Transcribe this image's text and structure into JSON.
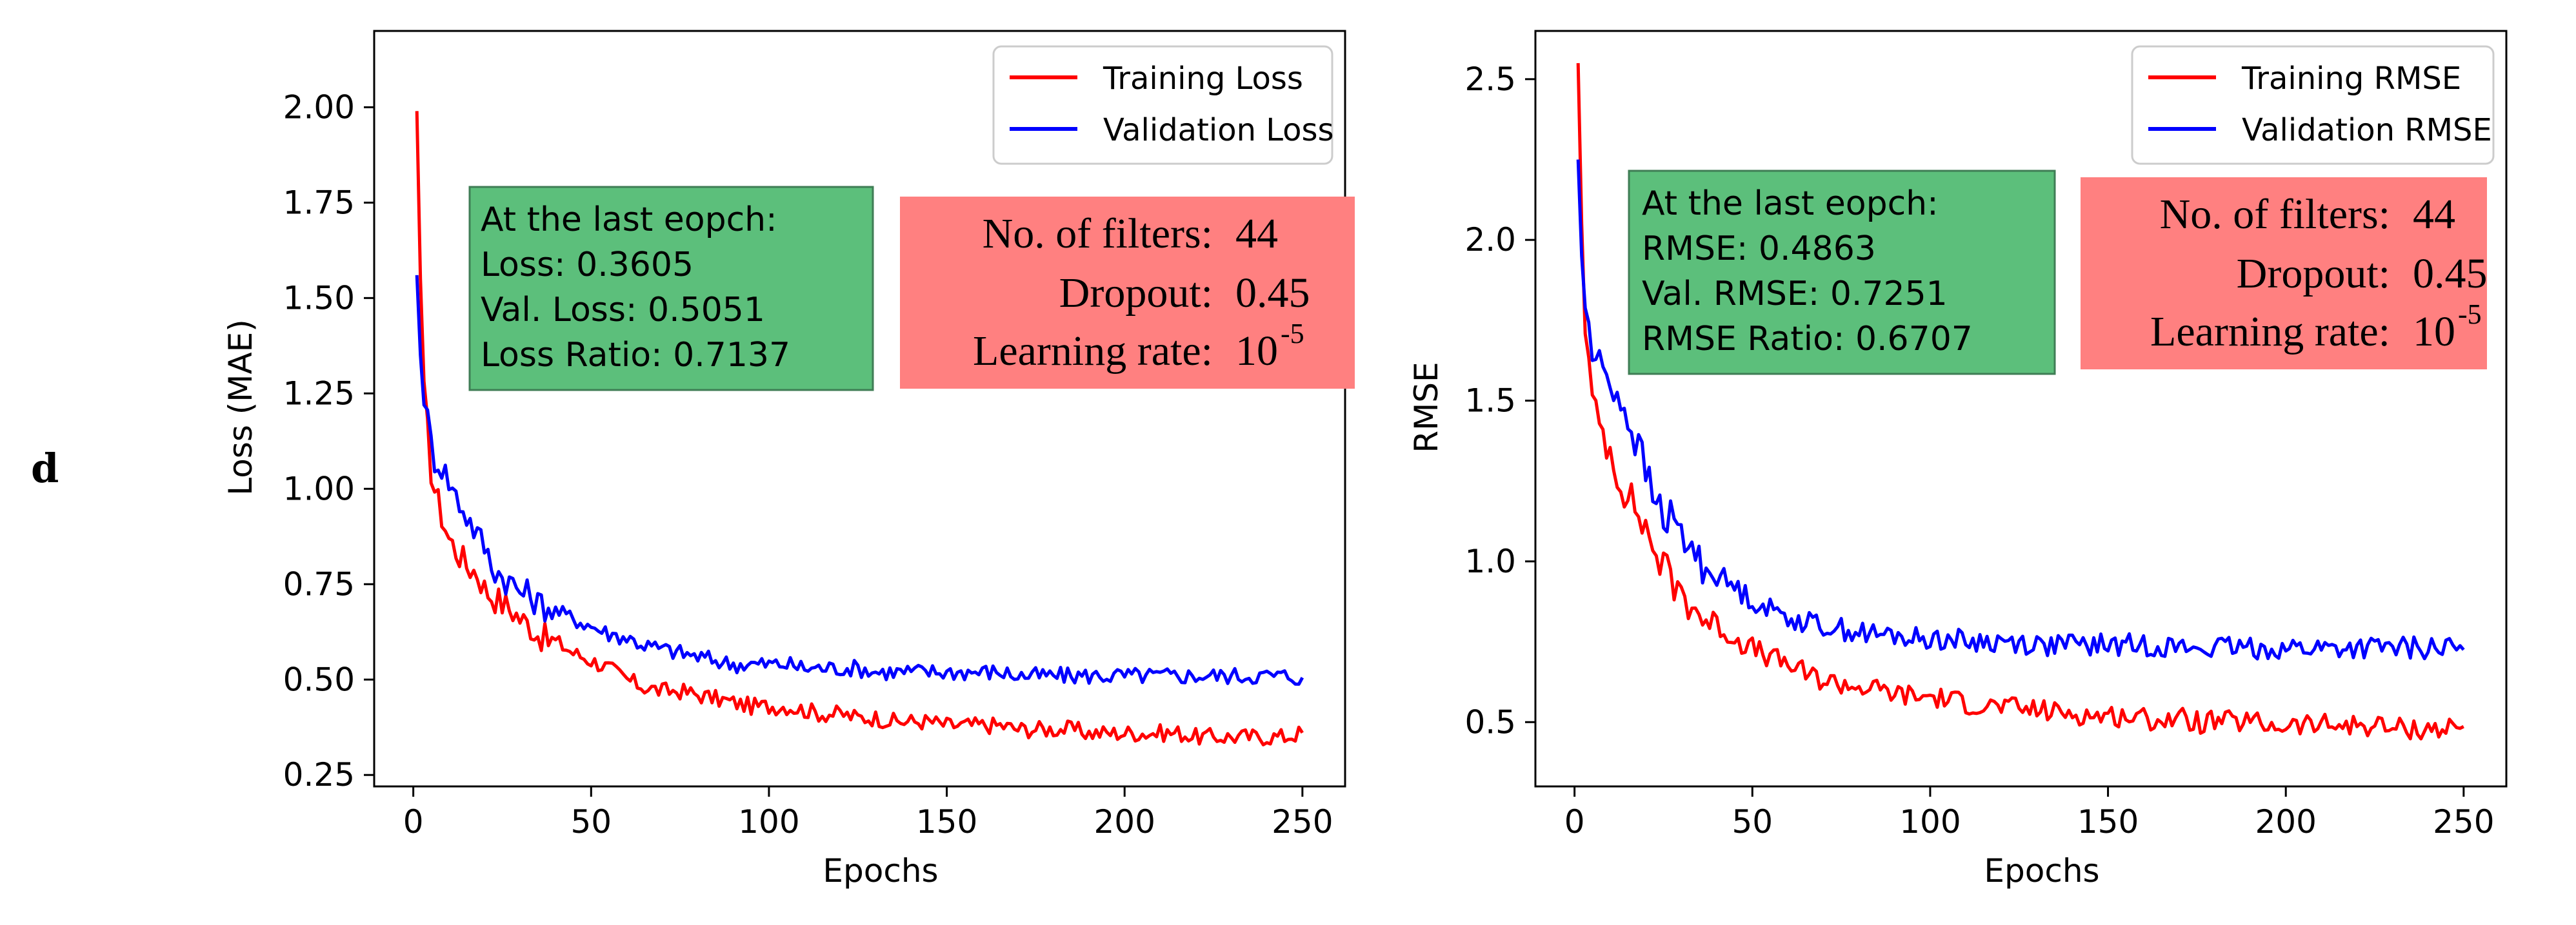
{
  "panel_label": "d",
  "colors": {
    "training": "#ff0000",
    "validation": "#0000ff",
    "green_box": "#5cbf7b",
    "red_box": "#ff8080"
  },
  "chart_data": [
    {
      "type": "line",
      "xlabel": "Epochs",
      "ylabel": "Loss (MAE)",
      "xlim": [
        -11,
        262
      ],
      "ylim": [
        0.22,
        2.2
      ],
      "xticks": [
        0,
        50,
        100,
        150,
        200,
        250
      ],
      "yticks": [
        0.25,
        0.5,
        0.75,
        1.0,
        1.25,
        1.5,
        1.75,
        2.0
      ],
      "ytick_labels": [
        "0.25",
        "0.50",
        "0.75",
        "1.00",
        "1.25",
        "1.50",
        "1.75",
        "2.00"
      ],
      "legend": {
        "position": "top-right",
        "entries": [
          "Training Loss",
          "Validation Loss"
        ]
      },
      "stats_box": {
        "line1": "At the last eopch:",
        "line2": "Loss: 0.3605",
        "line3": "Val. Loss: 0.5051",
        "line4": "Loss Ratio: 0.7137"
      },
      "params_box": {
        "filters_label": "No. of filters:",
        "filters_value": "44",
        "dropout_label": "Dropout:",
        "dropout_value": "0.45",
        "lr_label": "Learning rate:",
        "lr_base": "10",
        "lr_exp": "-5"
      },
      "series": [
        {
          "name": "Training Loss",
          "x": [
            1,
            2,
            3,
            4,
            5,
            6,
            8,
            10,
            12,
            15,
            18,
            20,
            22,
            25,
            28,
            30,
            33,
            35,
            38,
            40,
            45,
            50,
            55,
            60,
            65,
            70,
            75,
            80,
            85,
            90,
            95,
            100,
            105,
            110,
            115,
            120,
            125,
            130,
            135,
            140,
            145,
            150,
            155,
            160,
            165,
            170,
            175,
            180,
            185,
            190,
            195,
            200,
            205,
            210,
            215,
            220,
            225,
            230,
            235,
            240,
            245,
            250
          ],
          "values": [
            1.99,
            1.55,
            1.25,
            1.15,
            1.05,
            1.0,
            0.93,
            0.87,
            0.84,
            0.8,
            0.78,
            0.74,
            0.72,
            0.7,
            0.68,
            0.66,
            0.64,
            0.62,
            0.6,
            0.6,
            0.57,
            0.55,
            0.53,
            0.5,
            0.48,
            0.47,
            0.47,
            0.46,
            0.45,
            0.44,
            0.43,
            0.43,
            0.43,
            0.42,
            0.41,
            0.41,
            0.4,
            0.4,
            0.39,
            0.39,
            0.39,
            0.38,
            0.38,
            0.38,
            0.38,
            0.37,
            0.37,
            0.37,
            0.37,
            0.36,
            0.36,
            0.36,
            0.36,
            0.36,
            0.36,
            0.35,
            0.35,
            0.35,
            0.35,
            0.35,
            0.35,
            0.3605
          ]
        },
        {
          "name": "Validation Loss",
          "x": [
            1,
            2,
            3,
            4,
            5,
            6,
            8,
            10,
            12,
            15,
            18,
            20,
            22,
            25,
            28,
            30,
            33,
            35,
            38,
            40,
            45,
            50,
            55,
            60,
            65,
            70,
            75,
            80,
            85,
            90,
            95,
            100,
            105,
            110,
            115,
            120,
            125,
            130,
            135,
            140,
            145,
            150,
            155,
            160,
            165,
            170,
            175,
            180,
            185,
            190,
            195,
            200,
            205,
            210,
            215,
            220,
            225,
            230,
            235,
            240,
            245,
            250
          ],
          "values": [
            1.56,
            1.35,
            1.25,
            1.18,
            1.12,
            1.08,
            1.06,
            1.02,
            0.98,
            0.93,
            0.88,
            0.85,
            0.8,
            0.77,
            0.75,
            0.73,
            0.72,
            0.7,
            0.69,
            0.68,
            0.66,
            0.64,
            0.62,
            0.61,
            0.59,
            0.58,
            0.57,
            0.56,
            0.55,
            0.54,
            0.54,
            0.54,
            0.54,
            0.53,
            0.53,
            0.53,
            0.53,
            0.52,
            0.52,
            0.52,
            0.52,
            0.52,
            0.52,
            0.52,
            0.52,
            0.51,
            0.51,
            0.51,
            0.51,
            0.51,
            0.51,
            0.51,
            0.51,
            0.51,
            0.51,
            0.51,
            0.51,
            0.51,
            0.51,
            0.51,
            0.51,
            0.5051
          ]
        }
      ]
    },
    {
      "type": "line",
      "xlabel": "Epochs",
      "ylabel": "RMSE",
      "xlim": [
        -11,
        262
      ],
      "ylim": [
        0.3,
        2.65
      ],
      "xticks": [
        0,
        50,
        100,
        150,
        200,
        250
      ],
      "yticks": [
        0.5,
        1.0,
        1.5,
        2.0,
        2.5
      ],
      "ytick_labels": [
        "0.5",
        "1.0",
        "1.5",
        "2.0",
        "2.5"
      ],
      "legend": {
        "position": "top-right",
        "entries": [
          "Training RMSE",
          "Validation RMSE"
        ]
      },
      "stats_box": {
        "line1": "At the last eopch:",
        "line2": "RMSE: 0.4863",
        "line3": "Val. RMSE: 0.7251",
        "line4": "RMSE Ratio: 0.6707"
      },
      "params_box": {
        "filters_label": "No. of filters:",
        "filters_value": "44",
        "dropout_label": "Dropout:",
        "dropout_value": "0.45",
        "lr_label": "Learning rate:",
        "lr_base": "10",
        "lr_exp": "-5"
      },
      "series": [
        {
          "name": "Training RMSE",
          "x": [
            1,
            2,
            3,
            4,
            5,
            6,
            8,
            10,
            12,
            15,
            18,
            20,
            22,
            25,
            28,
            30,
            33,
            35,
            38,
            40,
            45,
            50,
            55,
            60,
            65,
            70,
            75,
            80,
            85,
            90,
            95,
            100,
            105,
            110,
            115,
            120,
            125,
            130,
            135,
            140,
            145,
            150,
            155,
            160,
            165,
            170,
            175,
            180,
            185,
            190,
            195,
            200,
            205,
            210,
            215,
            220,
            225,
            230,
            235,
            240,
            245,
            250
          ],
          "values": [
            2.55,
            2.05,
            1.75,
            1.6,
            1.5,
            1.45,
            1.4,
            1.35,
            1.28,
            1.2,
            1.15,
            1.1,
            1.05,
            0.98,
            0.93,
            0.9,
            0.87,
            0.84,
            0.81,
            0.8,
            0.76,
            0.73,
            0.7,
            0.68,
            0.65,
            0.63,
            0.62,
            0.61,
            0.6,
            0.59,
            0.58,
            0.58,
            0.57,
            0.56,
            0.55,
            0.55,
            0.54,
            0.54,
            0.53,
            0.53,
            0.52,
            0.52,
            0.52,
            0.51,
            0.51,
            0.51,
            0.5,
            0.5,
            0.5,
            0.5,
            0.49,
            0.49,
            0.49,
            0.49,
            0.49,
            0.49,
            0.49,
            0.48,
            0.48,
            0.48,
            0.48,
            0.4863
          ]
        },
        {
          "name": "Validation RMSE",
          "x": [
            1,
            2,
            3,
            4,
            5,
            6,
            8,
            10,
            12,
            15,
            18,
            20,
            22,
            25,
            28,
            30,
            33,
            35,
            38,
            40,
            45,
            50,
            55,
            60,
            65,
            70,
            75,
            80,
            85,
            90,
            95,
            100,
            105,
            110,
            115,
            120,
            125,
            130,
            135,
            140,
            145,
            150,
            155,
            160,
            165,
            170,
            175,
            180,
            185,
            190,
            195,
            200,
            205,
            210,
            215,
            220,
            225,
            230,
            235,
            240,
            245,
            250
          ],
          "values": [
            2.25,
            1.95,
            1.8,
            1.72,
            1.65,
            1.62,
            1.6,
            1.57,
            1.52,
            1.45,
            1.35,
            1.28,
            1.2,
            1.15,
            1.12,
            1.08,
            1.04,
            1.0,
            0.97,
            0.96,
            0.92,
            0.88,
            0.85,
            0.83,
            0.81,
            0.8,
            0.79,
            0.78,
            0.77,
            0.77,
            0.76,
            0.76,
            0.76,
            0.75,
            0.75,
            0.75,
            0.75,
            0.74,
            0.74,
            0.74,
            0.74,
            0.74,
            0.74,
            0.74,
            0.74,
            0.73,
            0.73,
            0.73,
            0.73,
            0.73,
            0.73,
            0.73,
            0.73,
            0.73,
            0.73,
            0.73,
            0.73,
            0.73,
            0.73,
            0.73,
            0.73,
            0.7251
          ]
        }
      ]
    }
  ]
}
